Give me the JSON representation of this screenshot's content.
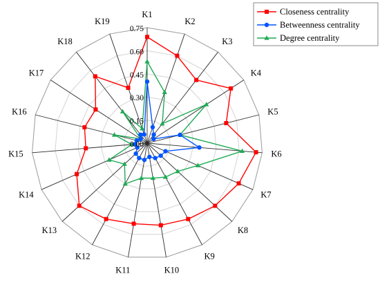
{
  "chart_data": {
    "type": "radar",
    "categories": [
      "K1",
      "K2",
      "K3",
      "K4",
      "K5",
      "K6",
      "K7",
      "K8",
      "K9",
      "K10",
      "K11",
      "K12",
      "K13",
      "K14",
      "K15",
      "K16",
      "K17",
      "K18",
      "K19"
    ],
    "rlim": [
      0,
      0.75
    ],
    "ticks": [
      0.0,
      0.15,
      0.3,
      0.45,
      0.6,
      0.75
    ],
    "tick_labels": [
      "0.00",
      "0.15",
      "0.30",
      "0.45",
      "0.60",
      "0.75"
    ],
    "grid": true,
    "legend_position": "top-right",
    "series": [
      {
        "name": "Closeness centrality",
        "color": "#ff0000",
        "marker": "square",
        "values": [
          0.69,
          0.6,
          0.52,
          0.65,
          0.53,
          0.71,
          0.65,
          0.6,
          0.56,
          0.54,
          0.53,
          0.56,
          0.6,
          0.5,
          0.4,
          0.42,
          0.4,
          0.55,
          0.38
        ]
      },
      {
        "name": "Betweenness centrality",
        "color": "#0055ff",
        "marker": "circle",
        "values": [
          0.4,
          0.11,
          0.07,
          0.05,
          0.22,
          0.34,
          0.13,
          0.12,
          0.11,
          0.09,
          0.11,
          0.11,
          0.1,
          0.07,
          0.08,
          0.07,
          0.05,
          0.07,
          0.06
        ]
      },
      {
        "name": "Degree centrality",
        "color": "#1faa55",
        "marker": "triangle",
        "values": [
          0.53,
          0.35,
          0.16,
          0.46,
          0.22,
          0.62,
          0.36,
          0.27,
          0.25,
          0.23,
          0.23,
          0.3,
          0.2,
          0.27,
          0.1,
          0.22,
          0.05,
          0.26,
          0.1
        ]
      }
    ]
  }
}
